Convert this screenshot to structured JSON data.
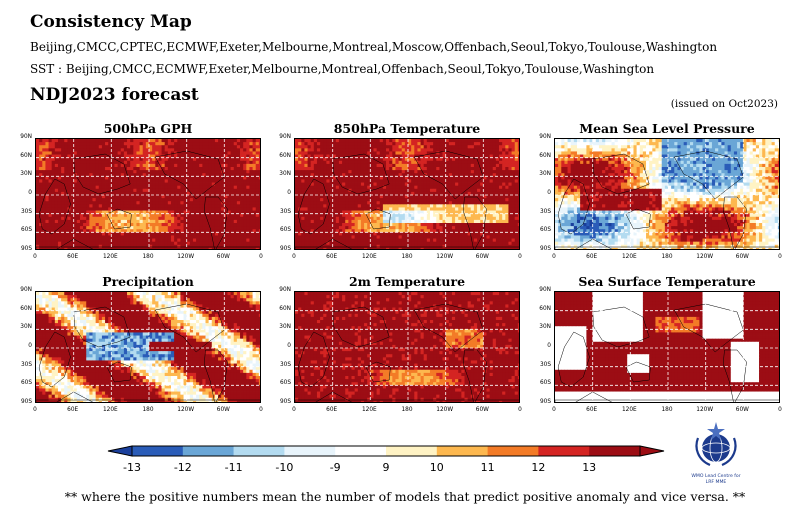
{
  "header": {
    "title": "Consistency Map",
    "models_line": "Beijing,CMCC,CPTEC,ECMWF,Exeter,Melbourne,Montreal,Moscow,Offenbach,Seoul,Tokyo,Toulouse,Washington",
    "sst_line": "SST : Beijing,CMCC,ECMWF,Exeter,Melbourne,Montreal,Offenbach,Seoul,Tokyo,Toulouse,Washington",
    "forecast": "NDJ2023 forecast",
    "issued": "(issued on Oct2023)"
  },
  "panels": [
    {
      "title": "500hPa GPH",
      "field": "gph"
    },
    {
      "title": "850hPa Temperature",
      "field": "t850"
    },
    {
      "title": "Mean Sea Level Pressure",
      "field": "mslp"
    },
    {
      "title": "Precipitation",
      "field": "precip"
    },
    {
      "title": "2m Temperature",
      "field": "t2m"
    },
    {
      "title": "Sea Surface Temperature",
      "field": "sst"
    }
  ],
  "axes": {
    "lat_ticks": [
      "90N",
      "60N",
      "30N",
      "0",
      "30S",
      "60S",
      "90S"
    ],
    "lon_ticks": [
      "0",
      "60E",
      "120E",
      "180",
      "120W",
      "60W",
      "0"
    ]
  },
  "colorbar": {
    "labels": [
      "-13",
      "-12",
      "-11",
      "-10",
      "-9",
      "9",
      "10",
      "11",
      "12",
      "13"
    ],
    "colors": [
      "#1a3f9c",
      "#2a5cb8",
      "#6aa6d6",
      "#b3dbf0",
      "#e8f4fb",
      "#ffffff",
      "#fff3c4",
      "#fdb84f",
      "#f37b27",
      "#d42422",
      "#9c0d14"
    ]
  },
  "logo": {
    "line1": "WMO Lead Centre for",
    "line2": "LRF MME"
  },
  "footnote": "** where the positive numbers mean the number of models that predict positive anomaly and vice versa. **"
}
